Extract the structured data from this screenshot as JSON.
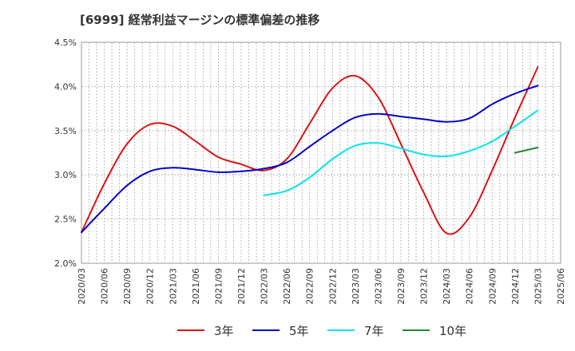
{
  "chart_data": {
    "type": "line",
    "title": "[6999]  経常利益マージンの標準偏差の推移",
    "xlabel": "",
    "ylabel": "",
    "x_ticks": [
      "2020/03",
      "2020/06",
      "2020/09",
      "2020/12",
      "2021/03",
      "2021/06",
      "2021/09",
      "2021/12",
      "2022/03",
      "2022/06",
      "2022/09",
      "2022/12",
      "2023/03",
      "2023/06",
      "2023/09",
      "2023/12",
      "2024/03",
      "2024/06",
      "2024/09",
      "2024/12",
      "2025/03",
      "2025/06"
    ],
    "y_ticks": [
      "2.0%",
      "2.5%",
      "3.0%",
      "3.5%",
      "4.0%",
      "4.5%"
    ],
    "ylim": [
      2.0,
      4.5
    ],
    "grid": true,
    "legend_position": "bottom",
    "series": [
      {
        "name": "3年",
        "color": "#dd1111",
        "points": [
          [
            "2020/03",
            2.35
          ],
          [
            "2020/06",
            2.9
          ],
          [
            "2020/09",
            3.35
          ],
          [
            "2020/12",
            3.57
          ],
          [
            "2021/03",
            3.55
          ],
          [
            "2021/06",
            3.38
          ],
          [
            "2021/09",
            3.2
          ],
          [
            "2021/12",
            3.12
          ],
          [
            "2022/03",
            3.05
          ],
          [
            "2022/06",
            3.18
          ],
          [
            "2022/09",
            3.58
          ],
          [
            "2022/12",
            3.98
          ],
          [
            "2023/03",
            4.12
          ],
          [
            "2023/06",
            3.88
          ],
          [
            "2023/09",
            3.35
          ],
          [
            "2023/12",
            2.8
          ],
          [
            "2024/03",
            2.34
          ],
          [
            "2024/06",
            2.52
          ],
          [
            "2024/09",
            3.05
          ],
          [
            "2024/12",
            3.65
          ],
          [
            "2025/03",
            4.22
          ]
        ]
      },
      {
        "name": "5年",
        "color": "#0000cc",
        "points": [
          [
            "2020/03",
            2.35
          ],
          [
            "2020/06",
            2.62
          ],
          [
            "2020/09",
            2.88
          ],
          [
            "2020/12",
            3.04
          ],
          [
            "2021/03",
            3.08
          ],
          [
            "2021/06",
            3.06
          ],
          [
            "2021/09",
            3.03
          ],
          [
            "2021/12",
            3.04
          ],
          [
            "2022/03",
            3.07
          ],
          [
            "2022/06",
            3.14
          ],
          [
            "2022/09",
            3.32
          ],
          [
            "2022/12",
            3.5
          ],
          [
            "2023/03",
            3.65
          ],
          [
            "2023/06",
            3.69
          ],
          [
            "2023/09",
            3.66
          ],
          [
            "2023/12",
            3.63
          ],
          [
            "2024/03",
            3.6
          ],
          [
            "2024/06",
            3.64
          ],
          [
            "2024/09",
            3.8
          ],
          [
            "2024/12",
            3.92
          ],
          [
            "2025/03",
            4.01
          ]
        ]
      },
      {
        "name": "7年",
        "color": "#00e5ee",
        "points": [
          [
            "2022/03",
            2.77
          ],
          [
            "2022/06",
            2.82
          ],
          [
            "2022/09",
            2.97
          ],
          [
            "2022/12",
            3.18
          ],
          [
            "2023/03",
            3.33
          ],
          [
            "2023/06",
            3.36
          ],
          [
            "2023/09",
            3.3
          ],
          [
            "2023/12",
            3.23
          ],
          [
            "2024/03",
            3.21
          ],
          [
            "2024/06",
            3.27
          ],
          [
            "2024/09",
            3.38
          ],
          [
            "2024/12",
            3.55
          ],
          [
            "2025/03",
            3.73
          ]
        ]
      },
      {
        "name": "10年",
        "color": "#228833",
        "points": [
          [
            "2024/12",
            3.25
          ],
          [
            "2025/03",
            3.31
          ]
        ]
      }
    ]
  }
}
